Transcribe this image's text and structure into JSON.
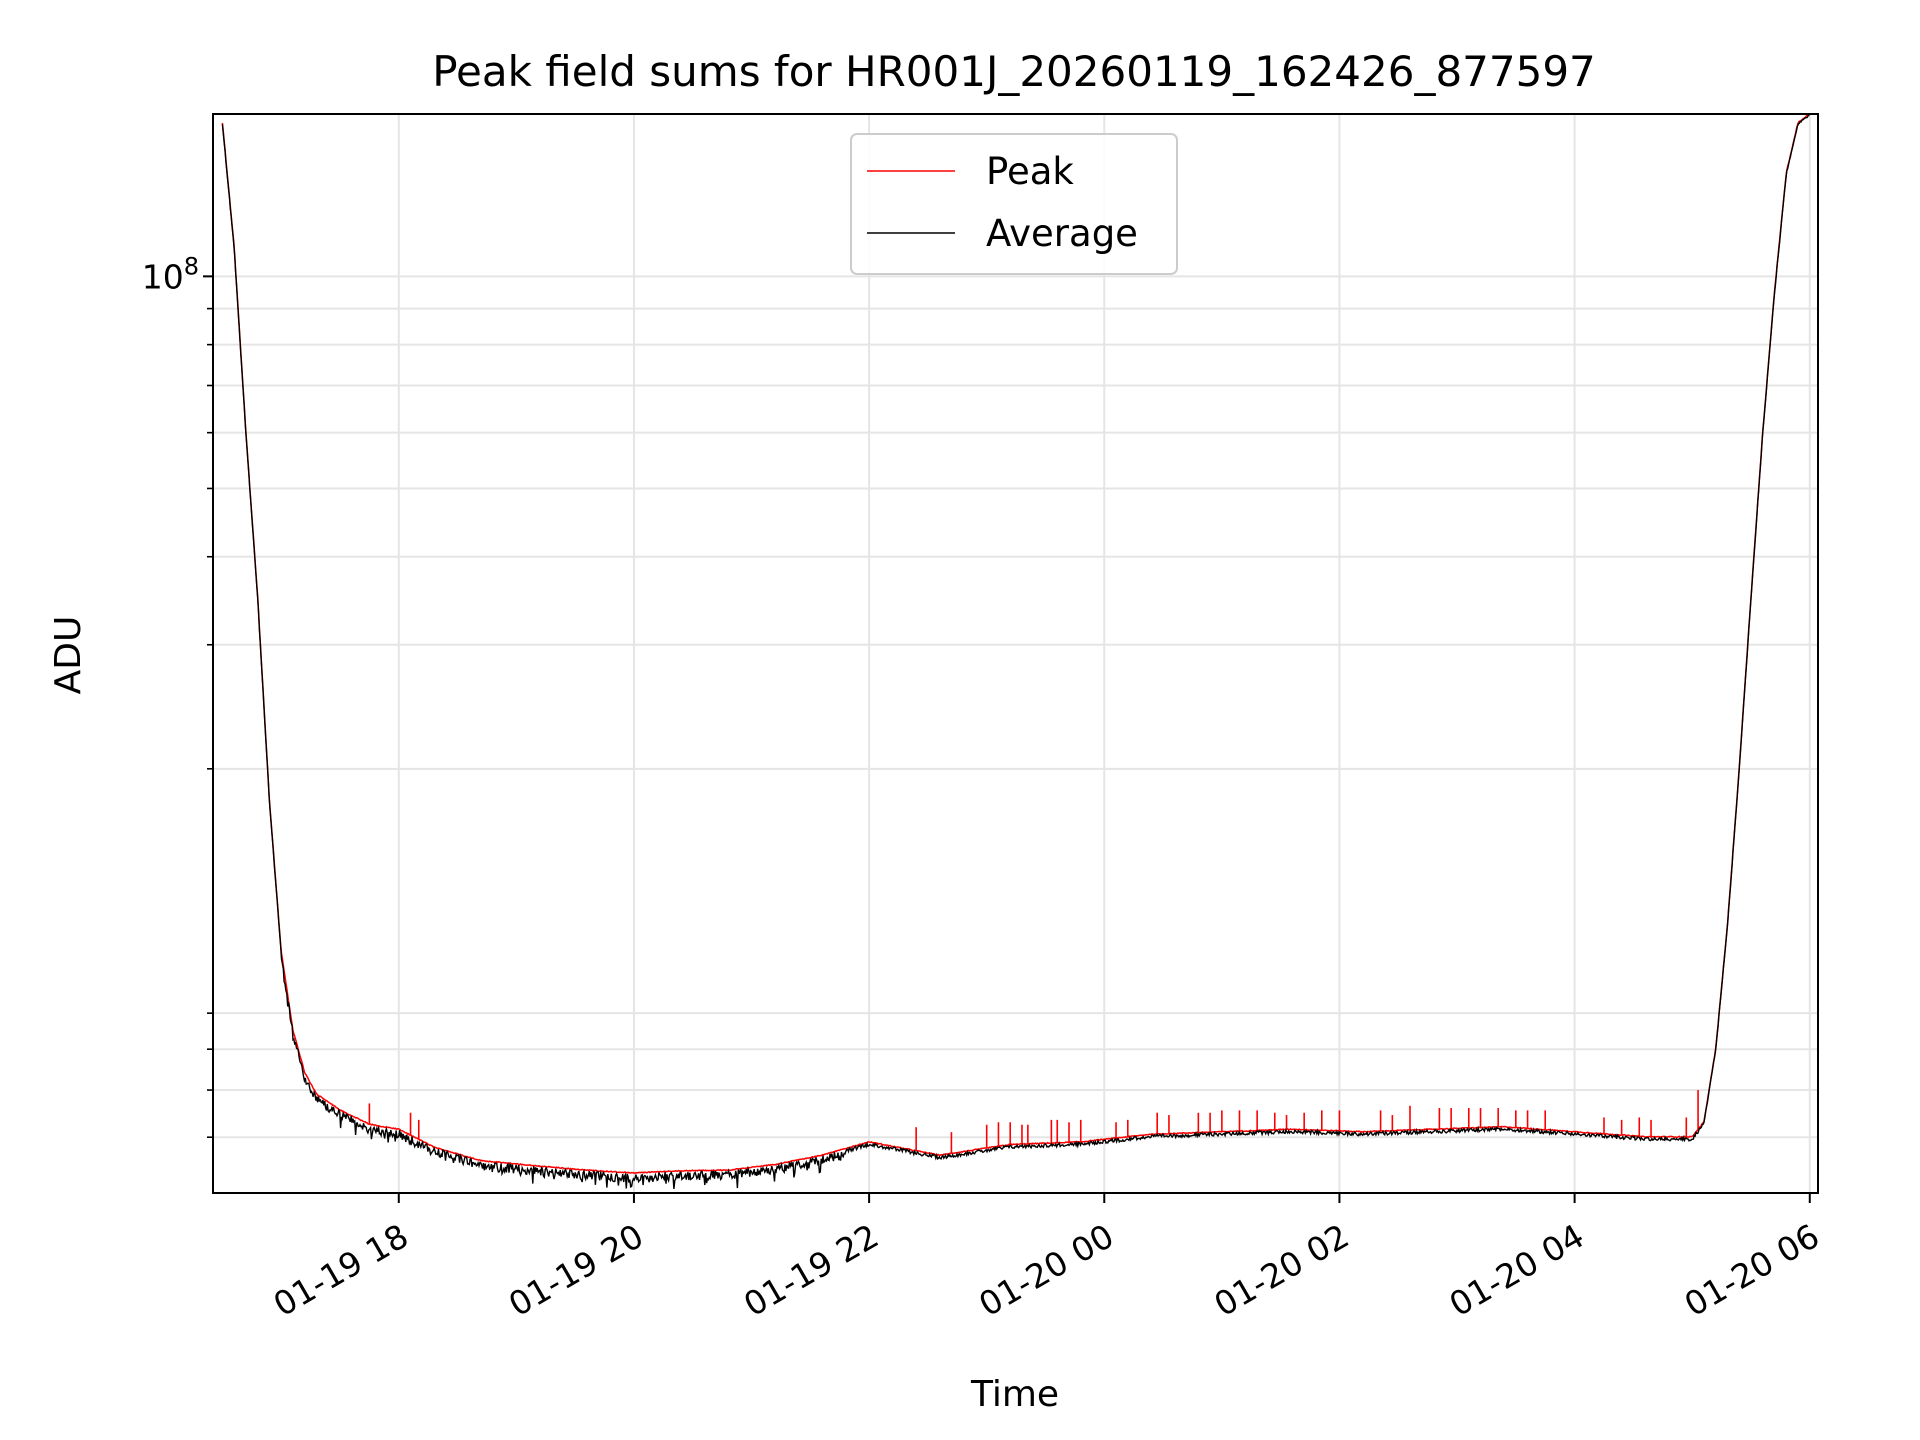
{
  "chart_data": {
    "type": "line",
    "title": "Peak field sums for HR001J_20260119_162426_877597",
    "xlabel": "Time",
    "ylabel": "ADU",
    "yscale": "log",
    "ylim": [
      5000000,
      170000000
    ],
    "xlim_hours": [
      16.42,
      30.07
    ],
    "grid": true,
    "legend_position": "top-center",
    "x_tick_hours": [
      18,
      20,
      22,
      24,
      26,
      28,
      30
    ],
    "x_tick_labels": [
      "01-19 18",
      "01-19 20",
      "01-19 22",
      "01-20 00",
      "01-20 02",
      "01-20 04",
      "01-20 06"
    ],
    "y_major_ticks": [
      {
        "value": 100000000,
        "base": "10",
        "exponent": "8"
      }
    ],
    "y_minor_ticks": [
      6000000,
      7000000,
      8000000,
      9000000,
      20000000,
      30000000,
      40000000,
      50000000,
      60000000,
      70000000,
      80000000,
      90000000,
      200000000
    ],
    "series": [
      {
        "name": "Peak",
        "color": "#ff0000"
      },
      {
        "name": "Average",
        "color": "#000000"
      }
    ],
    "baseline_hours": [
      16.5,
      16.6,
      16.7,
      16.8,
      16.9,
      17.0,
      17.1,
      17.2,
      17.3,
      17.5,
      17.75,
      18.0,
      18.3,
      18.7,
      19.2,
      19.6,
      20.0,
      20.4,
      20.8,
      21.2,
      21.6,
      22.0,
      22.6,
      23.2,
      23.8,
      24.4,
      25.0,
      25.6,
      26.2,
      26.8,
      27.4,
      28.0,
      28.6,
      29.0,
      29.1,
      29.2,
      29.3,
      29.4,
      29.5,
      29.6,
      29.7,
      29.8,
      29.9,
      30.0
    ],
    "baseline_values": [
      165000000,
      110000000,
      60000000,
      35000000,
      18000000,
      11000000,
      8500000,
      7400000,
      6900000,
      6550000,
      6250000,
      6150000,
      5800000,
      5550000,
      5450000,
      5380000,
      5330000,
      5370000,
      5380000,
      5480000,
      5650000,
      5900000,
      5650000,
      5850000,
      5900000,
      6050000,
      6100000,
      6150000,
      6100000,
      6150000,
      6200000,
      6100000,
      6000000,
      6000000,
      6300000,
      8000000,
      12000000,
      20000000,
      35000000,
      60000000,
      95000000,
      140000000,
      165000000,
      170000000
    ],
    "peak_spike_hours": [
      17.75,
      18.1,
      18.17,
      22.4,
      22.7,
      23.0,
      23.1,
      23.2,
      23.3,
      23.35,
      23.55,
      23.6,
      23.7,
      23.8,
      24.1,
      24.2,
      24.45,
      24.55,
      24.8,
      24.9,
      25.0,
      25.15,
      25.3,
      25.45,
      25.55,
      25.7,
      25.85,
      26.0,
      26.35,
      26.45,
      26.6,
      26.85,
      26.95,
      27.1,
      27.2,
      27.35,
      27.5,
      27.6,
      27.75,
      28.25,
      28.4,
      28.55,
      28.65,
      28.95,
      29.05
    ],
    "peak_spike_values": [
      6700000,
      6500000,
      6350000,
      6200000,
      6100000,
      6250000,
      6300000,
      6300000,
      6250000,
      6250000,
      6350000,
      6350000,
      6300000,
      6350000,
      6300000,
      6350000,
      6500000,
      6450000,
      6500000,
      6500000,
      6550000,
      6550000,
      6550000,
      6500000,
      6450000,
      6500000,
      6550000,
      6550000,
      6550000,
      6450000,
      6650000,
      6600000,
      6600000,
      6600000,
      6600000,
      6600000,
      6550000,
      6550000,
      6550000,
      6400000,
      6350000,
      6400000,
      6350000,
      6400000,
      7000000
    ]
  },
  "legend": {
    "peak_label": "Peak",
    "average_label": "Average"
  }
}
